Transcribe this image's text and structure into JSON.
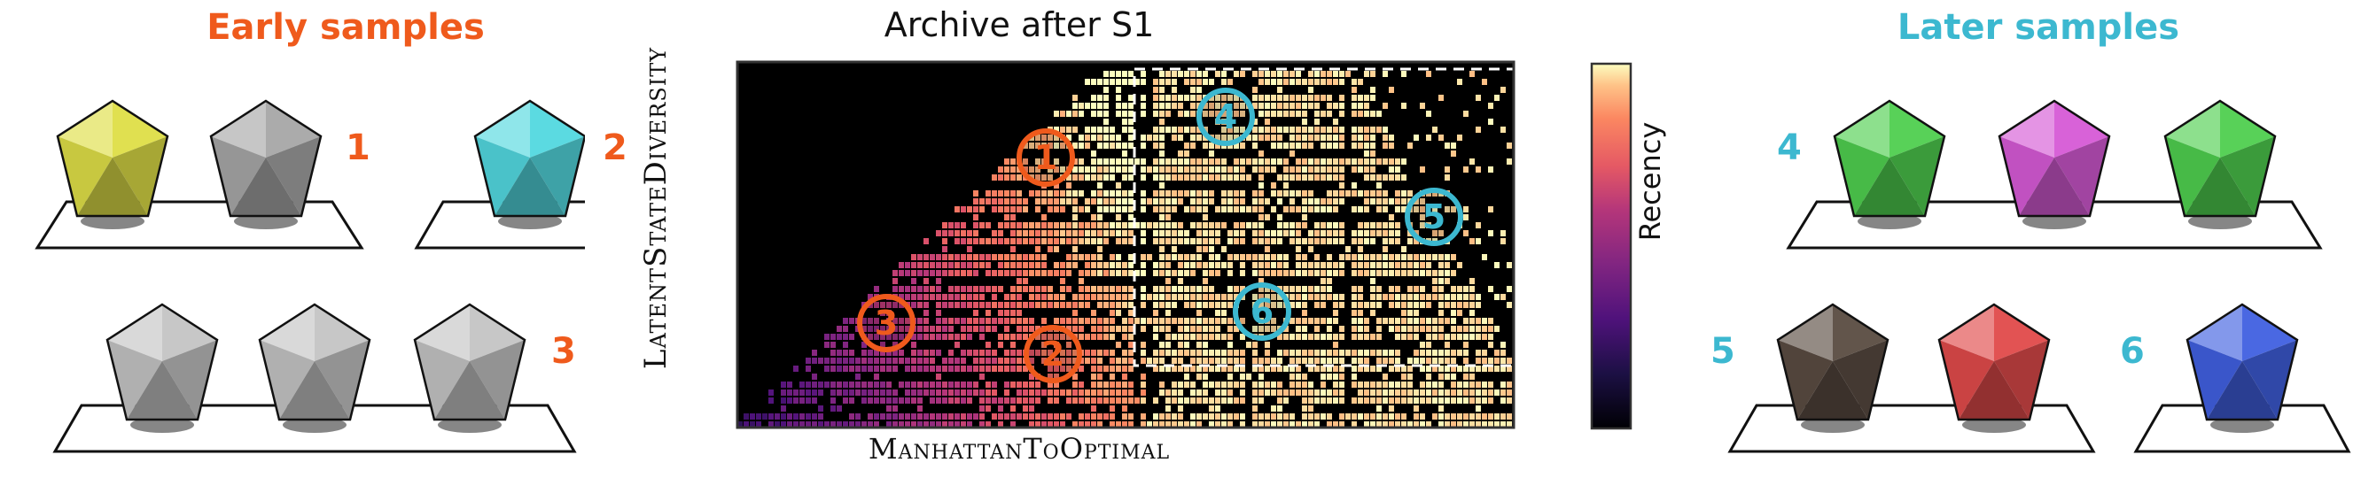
{
  "left_panel": {
    "title": "Early samples",
    "title_color": "#ef5a1c",
    "labels": [
      "1",
      "2",
      "3"
    ],
    "gem_colors": {
      "sample1": [
        "#dede47",
        "#a7a7a7"
      ],
      "sample2": [
        "#52d8df"
      ],
      "sample3": [
        "#c4c4c4",
        "#c4c4c4",
        "#c4c4c4"
      ]
    }
  },
  "center_panel": {
    "title": "Archive after S1",
    "ylabel": "LatentStateDiversity",
    "xlabel": "ManhattanToOptimal",
    "colorbar_label": "Recency",
    "colormap": "magma",
    "early_marker_color": "#ef5a1c",
    "later_marker_color": "#3cb8d0",
    "markers": [
      {
        "label": "1",
        "group": "early"
      },
      {
        "label": "2",
        "group": "early"
      },
      {
        "label": "3",
        "group": "early"
      },
      {
        "label": "4",
        "group": "later"
      },
      {
        "label": "5",
        "group": "later"
      },
      {
        "label": "6",
        "group": "later"
      }
    ]
  },
  "right_panel": {
    "title": "Later samples",
    "title_color": "#3cb8d0",
    "labels": [
      "4",
      "5",
      "6"
    ],
    "gem_colors": {
      "sample4": [
        "#4fcf4f",
        "#d65ad6",
        "#4fcf4f"
      ],
      "sample5": [
        "#5a4c42",
        "#e04a4a"
      ],
      "sample6": [
        "#4060e0"
      ]
    }
  }
}
